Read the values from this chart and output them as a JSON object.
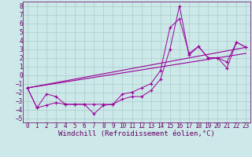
{
  "xlabel": "Windchill (Refroidissement éolien,°C)",
  "background_color": "#cce8e8",
  "grid_color": "#aacccc",
  "line_color": "#990099",
  "xlim": [
    -0.5,
    23.5
  ],
  "ylim": [
    -5.5,
    8.5
  ],
  "xticks": [
    0,
    1,
    2,
    3,
    4,
    5,
    6,
    7,
    8,
    9,
    10,
    11,
    12,
    13,
    14,
    15,
    16,
    17,
    18,
    19,
    20,
    21,
    22,
    23
  ],
  "yticks": [
    -5,
    -4,
    -3,
    -2,
    -1,
    0,
    1,
    2,
    3,
    4,
    5,
    6,
    7,
    8
  ],
  "series1_x": [
    0,
    1,
    2,
    3,
    4,
    5,
    6,
    7,
    8,
    9,
    10,
    11,
    12,
    13,
    14,
    15,
    16,
    17,
    18,
    19,
    20,
    21,
    22,
    23
  ],
  "series1_y": [
    -1.5,
    -3.8,
    -3.5,
    -3.2,
    -3.4,
    -3.4,
    -3.4,
    -4.5,
    -3.5,
    -3.4,
    -2.8,
    -2.5,
    -2.5,
    -1.8,
    -0.5,
    3.0,
    8.0,
    2.3,
    3.3,
    2.0,
    2.0,
    0.8,
    3.8,
    3.2
  ],
  "series2_x": [
    0,
    1,
    2,
    3,
    4,
    5,
    6,
    7,
    8,
    9,
    10,
    11,
    12,
    13,
    14,
    15,
    16,
    17,
    18,
    19,
    20,
    21,
    22,
    23
  ],
  "series2_y": [
    -1.5,
    -3.8,
    -2.2,
    -2.5,
    -3.4,
    -3.4,
    -3.4,
    -3.4,
    -3.4,
    -3.4,
    -2.2,
    -2.0,
    -1.5,
    -1.0,
    0.5,
    5.5,
    6.5,
    2.5,
    3.3,
    2.0,
    2.0,
    1.5,
    3.8,
    3.2
  ],
  "trend1_x": [
    0,
    23
  ],
  "trend1_y": [
    -1.5,
    3.2
  ],
  "trend2_x": [
    0,
    23
  ],
  "trend2_y": [
    -1.5,
    2.5
  ],
  "font_color": "#660066",
  "tick_fontsize": 5.5,
  "label_fontsize": 6.5
}
